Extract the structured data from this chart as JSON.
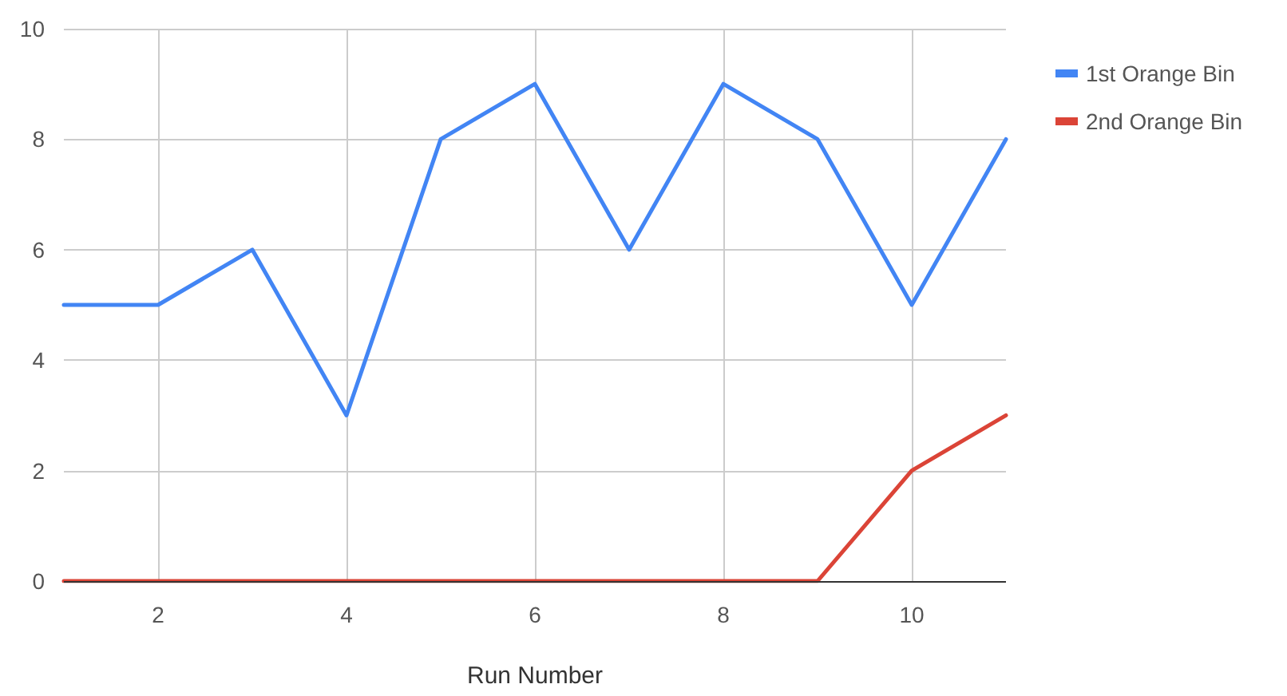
{
  "chart_data": {
    "type": "line",
    "xlabel": "Run Number",
    "x": [
      1,
      2,
      3,
      4,
      5,
      6,
      7,
      8,
      9,
      10,
      11
    ],
    "series": [
      {
        "name": "1st Orange Bin",
        "color": "#4285f4",
        "values": [
          5,
          5,
          6,
          3,
          8,
          9,
          6,
          9,
          8,
          5,
          8
        ]
      },
      {
        "name": "2nd Orange Bin",
        "color": "#db4437",
        "values": [
          0,
          0,
          0,
          0,
          0,
          0,
          0,
          0,
          0,
          2,
          3
        ]
      }
    ],
    "xlim": [
      1,
      11
    ],
    "xticks": [
      2,
      4,
      6,
      8,
      10
    ],
    "ylim": [
      0,
      10
    ],
    "yticks": [
      0,
      2,
      4,
      6,
      8,
      10
    ],
    "grid": true,
    "legend": "top right",
    "marker": "none"
  }
}
